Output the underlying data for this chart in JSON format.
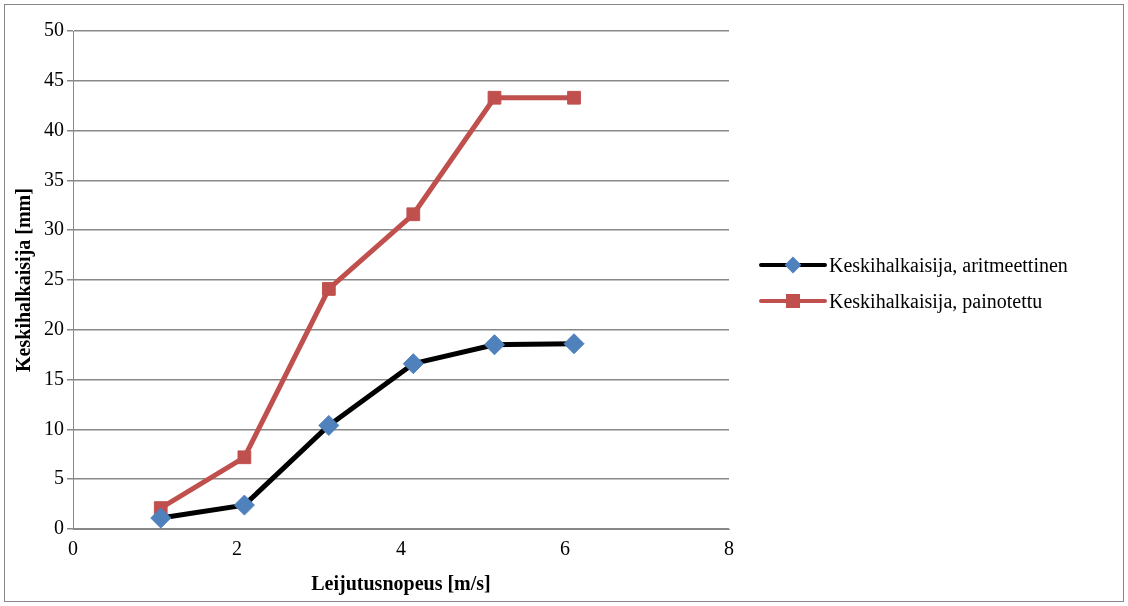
{
  "chart_data": {
    "type": "line",
    "xlabel": "Leijutusnopeus [m/s]",
    "ylabel": "Keskihalkaisija [mm]",
    "xlim": [
      0,
      8
    ],
    "xticks": [
      0,
      2,
      4,
      6,
      8
    ],
    "ylim": [
      0,
      50
    ],
    "yticks": [
      0,
      5,
      10,
      15,
      20,
      25,
      30,
      35,
      40,
      45,
      50
    ],
    "grid": "y",
    "legend": "right",
    "line_style": "solid",
    "series": [
      {
        "name": "Keskihalkaisija, aritmeettinen",
        "color": "#000000",
        "marker": "diamond",
        "x": [
          1.07,
          2.09,
          3.12,
          4.15,
          5.14,
          6.11
        ],
        "values": [
          1.1,
          2.4,
          10.4,
          16.6,
          18.5,
          18.6
        ]
      },
      {
        "name": "Keskihalkaisija, painotettu",
        "color": "#c0504d",
        "marker": "square",
        "x": [
          1.07,
          2.09,
          3.12,
          4.15,
          5.14,
          6.11
        ],
        "values": [
          2.1,
          7.2,
          24.1,
          31.6,
          43.3,
          43.3
        ]
      }
    ]
  }
}
